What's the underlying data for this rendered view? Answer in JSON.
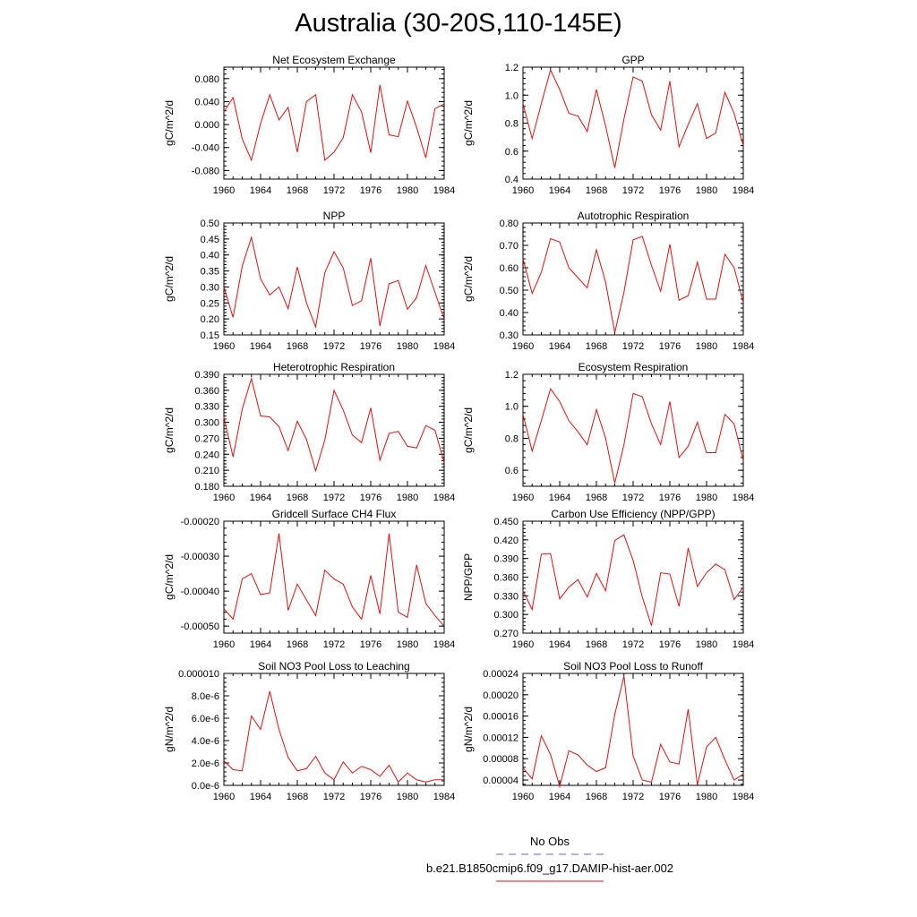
{
  "title": "Australia (30-20S,110-145E)",
  "legend": {
    "obs_label": "No Obs",
    "obs_color": "#6666cc",
    "case_label": "b.e21.B1850cmip6.f09_g17.DAMIP-hist-aer.002",
    "case_color": "#e01010"
  },
  "chart_data": [
    {
      "type": "line",
      "title": "Net Ecosystem Exchange",
      "ylabel": "gC/m^2/d",
      "xlim": [
        1960,
        1984
      ],
      "ylim": [
        -0.095,
        0.1
      ],
      "yticks": [
        -0.08,
        -0.04,
        0.0,
        0.04,
        0.08
      ],
      "ytick_labels": [
        "-0.080",
        "-0.040",
        "0.000",
        "0.040",
        "0.080"
      ],
      "xticks": [
        1960,
        1964,
        1968,
        1972,
        1976,
        1980,
        1984
      ],
      "xtick_labels": [
        "1960",
        "1964",
        "1968",
        "1972",
        "1976",
        "1980",
        "1984"
      ],
      "series": [
        {
          "color": "#e01010",
          "x": [
            1960,
            1961,
            1962,
            1963,
            1964,
            1965,
            1966,
            1967,
            1968,
            1969,
            1970,
            1971,
            1972,
            1973,
            1974,
            1975,
            1976,
            1977,
            1978,
            1979,
            1980,
            1981,
            1982,
            1983,
            1984
          ],
          "y": [
            0.022,
            0.047,
            -0.025,
            -0.062,
            0.002,
            0.052,
            0.008,
            0.03,
            -0.048,
            0.04,
            0.052,
            -0.062,
            -0.048,
            -0.023,
            0.052,
            0.022,
            -0.049,
            0.069,
            -0.018,
            -0.021,
            0.041,
            -0.005,
            -0.058,
            0.028,
            0.036
          ]
        }
      ]
    },
    {
      "type": "line",
      "title": "GPP",
      "ylabel": "gC/m^2/d",
      "xlim": [
        1960,
        1984
      ],
      "ylim": [
        0.4,
        1.2
      ],
      "yticks": [
        0.4,
        0.6,
        0.8,
        1.0,
        1.2
      ],
      "ytick_labels": [
        "0.4",
        "0.6",
        "0.8",
        "1.0",
        "1.2"
      ],
      "xticks": [
        1960,
        1964,
        1968,
        1972,
        1976,
        1980,
        1984
      ],
      "xtick_labels": [
        "1960",
        "1964",
        "1968",
        "1972",
        "1976",
        "1980",
        "1984"
      ],
      "series": [
        {
          "color": "#e01010",
          "x": [
            1960,
            1961,
            1962,
            1963,
            1964,
            1965,
            1966,
            1967,
            1968,
            1969,
            1970,
            1971,
            1972,
            1973,
            1974,
            1975,
            1976,
            1977,
            1978,
            1979,
            1980,
            1981,
            1982,
            1983,
            1984
          ],
          "y": [
            0.94,
            0.69,
            0.94,
            1.18,
            1.04,
            0.87,
            0.85,
            0.74,
            1.04,
            0.78,
            0.48,
            0.83,
            1.13,
            1.1,
            0.86,
            0.75,
            1.1,
            0.63,
            0.79,
            0.94,
            0.69,
            0.73,
            1.02,
            0.87,
            0.64
          ]
        }
      ]
    },
    {
      "type": "line",
      "title": "NPP",
      "ylabel": "gC/m^2/d",
      "xlim": [
        1960,
        1984
      ],
      "ylim": [
        0.15,
        0.5
      ],
      "yticks": [
        0.15,
        0.2,
        0.25,
        0.3,
        0.35,
        0.4,
        0.45,
        0.5
      ],
      "ytick_labels": [
        "0.15",
        "0.20",
        "0.25",
        "0.30",
        "0.35",
        "0.40",
        "0.45",
        "0.50"
      ],
      "xticks": [
        1960,
        1964,
        1968,
        1972,
        1976,
        1980,
        1984
      ],
      "xtick_labels": [
        "1960",
        "1964",
        "1968",
        "1972",
        "1976",
        "1980",
        "1984"
      ],
      "series": [
        {
          "color": "#e01010",
          "x": [
            1960,
            1961,
            1962,
            1963,
            1964,
            1965,
            1966,
            1967,
            1968,
            1969,
            1970,
            1971,
            1972,
            1973,
            1974,
            1975,
            1976,
            1977,
            1978,
            1979,
            1980,
            1981,
            1982,
            1983,
            1984
          ],
          "y": [
            0.3,
            0.205,
            0.365,
            0.455,
            0.325,
            0.275,
            0.3,
            0.232,
            0.362,
            0.25,
            0.175,
            0.345,
            0.41,
            0.36,
            0.242,
            0.257,
            0.39,
            0.178,
            0.31,
            0.32,
            0.23,
            0.267,
            0.367,
            0.283,
            0.2
          ]
        }
      ]
    },
    {
      "type": "line",
      "title": "Autotrophic Respiration",
      "ylabel": "gC/m^2/d",
      "xlim": [
        1960,
        1984
      ],
      "ylim": [
        0.3,
        0.8
      ],
      "yticks": [
        0.3,
        0.4,
        0.5,
        0.6,
        0.7,
        0.8
      ],
      "ytick_labels": [
        "0.30",
        "0.40",
        "0.50",
        "0.60",
        "0.70",
        "0.80"
      ],
      "xticks": [
        1960,
        1964,
        1968,
        1972,
        1976,
        1980,
        1984
      ],
      "xtick_labels": [
        "1960",
        "1964",
        "1968",
        "1972",
        "1976",
        "1980",
        "1984"
      ],
      "series": [
        {
          "color": "#e01010",
          "x": [
            1960,
            1961,
            1962,
            1963,
            1964,
            1965,
            1966,
            1967,
            1968,
            1969,
            1970,
            1971,
            1972,
            1973,
            1974,
            1975,
            1976,
            1977,
            1978,
            1979,
            1980,
            1981,
            1982,
            1983,
            1984
          ],
          "y": [
            0.64,
            0.485,
            0.58,
            0.73,
            0.715,
            0.6,
            0.555,
            0.51,
            0.68,
            0.535,
            0.31,
            0.49,
            0.725,
            0.74,
            0.61,
            0.495,
            0.705,
            0.455,
            0.475,
            0.625,
            0.46,
            0.46,
            0.66,
            0.6,
            0.445
          ]
        }
      ]
    },
    {
      "type": "line",
      "title": "Heterotrophic Respiration",
      "ylabel": "gC/m^2/d",
      "xlim": [
        1960,
        1984
      ],
      "ylim": [
        0.18,
        0.39
      ],
      "yticks": [
        0.18,
        0.21,
        0.24,
        0.27,
        0.3,
        0.33,
        0.36,
        0.39
      ],
      "ytick_labels": [
        "0.180",
        "0.210",
        "0.240",
        "0.270",
        "0.300",
        "0.330",
        "0.360",
        "0.390"
      ],
      "xticks": [
        1960,
        1964,
        1968,
        1972,
        1976,
        1980,
        1984
      ],
      "xtick_labels": [
        "1960",
        "1964",
        "1968",
        "1972",
        "1976",
        "1980",
        "1984"
      ],
      "series": [
        {
          "color": "#e01010",
          "x": [
            1960,
            1961,
            1962,
            1963,
            1964,
            1965,
            1966,
            1967,
            1968,
            1969,
            1970,
            1971,
            1972,
            1973,
            1974,
            1975,
            1976,
            1977,
            1978,
            1979,
            1980,
            1981,
            1982,
            1983,
            1984
          ],
          "y": [
            0.31,
            0.235,
            0.325,
            0.382,
            0.312,
            0.31,
            0.292,
            0.247,
            0.302,
            0.268,
            0.209,
            0.267,
            0.36,
            0.323,
            0.276,
            0.262,
            0.327,
            0.229,
            0.279,
            0.283,
            0.255,
            0.252,
            0.294,
            0.285,
            0.224
          ]
        }
      ]
    },
    {
      "type": "line",
      "title": "Ecosystem Respiration",
      "ylabel": "gC/m^2/d",
      "xlim": [
        1960,
        1984
      ],
      "ylim": [
        0.5,
        1.2
      ],
      "yticks": [
        0.6,
        0.8,
        1.0,
        1.2
      ],
      "ytick_labels": [
        "0.6",
        "0.8",
        "1.0",
        "1.2"
      ],
      "xticks": [
        1960,
        1964,
        1968,
        1972,
        1976,
        1980,
        1984
      ],
      "xtick_labels": [
        "1960",
        "1964",
        "1968",
        "1972",
        "1976",
        "1980",
        "1984"
      ],
      "series": [
        {
          "color": "#e01010",
          "x": [
            1960,
            1961,
            1962,
            1963,
            1964,
            1965,
            1966,
            1967,
            1968,
            1969,
            1970,
            1971,
            1972,
            1973,
            1974,
            1975,
            1976,
            1977,
            1978,
            1979,
            1980,
            1981,
            1982,
            1983,
            1984
          ],
          "y": [
            0.95,
            0.72,
            0.91,
            1.11,
            1.03,
            0.91,
            0.84,
            0.76,
            0.98,
            0.8,
            0.52,
            0.76,
            1.08,
            1.06,
            0.89,
            0.76,
            1.03,
            0.68,
            0.75,
            0.9,
            0.71,
            0.71,
            0.95,
            0.89,
            0.66
          ]
        }
      ]
    },
    {
      "type": "line",
      "title": "Gridcell Surface CH4 Flux",
      "ylabel": "gC/m^2/d",
      "xlim": [
        1960,
        1984
      ],
      "ylim": [
        -0.00052,
        -0.0002
      ],
      "yticks": [
        -0.0005,
        -0.0004,
        -0.0003,
        -0.0002
      ],
      "ytick_labels": [
        "-0.00050",
        "-0.00040",
        "-0.00030",
        "-0.00020"
      ],
      "xticks": [
        1960,
        1964,
        1968,
        1972,
        1976,
        1980,
        1984
      ],
      "xtick_labels": [
        "1960",
        "1964",
        "1968",
        "1972",
        "1976",
        "1980",
        "1984"
      ],
      "series": [
        {
          "color": "#e01010",
          "x": [
            1960,
            1961,
            1962,
            1963,
            1964,
            1965,
            1966,
            1967,
            1968,
            1969,
            1970,
            1971,
            1972,
            1973,
            1974,
            1975,
            1976,
            1977,
            1978,
            1979,
            1980,
            1981,
            1982,
            1983,
            1984
          ],
          "y": [
            -0.00045,
            -0.00048,
            -0.000365,
            -0.00035,
            -0.00041,
            -0.000405,
            -0.000235,
            -0.000455,
            -0.00038,
            -0.000425,
            -0.00047,
            -0.00034,
            -0.000365,
            -0.00038,
            -0.000445,
            -0.00048,
            -0.000355,
            -0.000465,
            -0.000235,
            -0.00046,
            -0.000475,
            -0.000325,
            -0.000435,
            -0.00047,
            -0.0005
          ]
        }
      ]
    },
    {
      "type": "line",
      "title": "Carbon Use Efficiency (NPP/GPP)",
      "ylabel": "NPP/GPP",
      "xlim": [
        1960,
        1984
      ],
      "ylim": [
        0.27,
        0.45
      ],
      "yticks": [
        0.27,
        0.3,
        0.33,
        0.36,
        0.39,
        0.42,
        0.45
      ],
      "ytick_labels": [
        "0.270",
        "0.300",
        "0.330",
        "0.360",
        "0.390",
        "0.420",
        "0.450"
      ],
      "xticks": [
        1960,
        1964,
        1968,
        1972,
        1976,
        1980,
        1984
      ],
      "xtick_labels": [
        "1960",
        "1964",
        "1968",
        "1972",
        "1976",
        "1980",
        "1984"
      ],
      "series": [
        {
          "color": "#e01010",
          "x": [
            1960,
            1961,
            1962,
            1963,
            1964,
            1965,
            1966,
            1967,
            1968,
            1969,
            1970,
            1971,
            1972,
            1973,
            1974,
            1975,
            1976,
            1977,
            1978,
            1979,
            1980,
            1981,
            1982,
            1983,
            1984
          ],
          "y": [
            0.338,
            0.308,
            0.397,
            0.398,
            0.325,
            0.344,
            0.356,
            0.328,
            0.366,
            0.338,
            0.419,
            0.428,
            0.387,
            0.328,
            0.282,
            0.367,
            0.365,
            0.313,
            0.407,
            0.345,
            0.367,
            0.381,
            0.372,
            0.324,
            0.344
          ]
        }
      ]
    },
    {
      "type": "line",
      "title": "Soil NO3 Pool Loss to Leaching",
      "ylabel": "gN/m^2/d",
      "xlim": [
        1960,
        1984
      ],
      "ylim": [
        0,
        1e-05
      ],
      "yticks": [
        0,
        2e-06,
        4e-06,
        6e-06,
        8e-06,
        1e-05
      ],
      "ytick_labels": [
        "0.0e-6",
        "2.0e-6",
        "4.0e-6",
        "6.0e-6",
        "8.0e-6",
        "0.000010"
      ],
      "xticks": [
        1960,
        1964,
        1968,
        1972,
        1976,
        1980,
        1984
      ],
      "xtick_labels": [
        "1960",
        "1964",
        "1968",
        "1972",
        "1976",
        "1980",
        "1984"
      ],
      "series": [
        {
          "color": "#e01010",
          "x": [
            1960,
            1961,
            1962,
            1963,
            1964,
            1965,
            1966,
            1967,
            1968,
            1969,
            1970,
            1971,
            1972,
            1973,
            1974,
            1975,
            1976,
            1977,
            1978,
            1979,
            1980,
            1981,
            1982,
            1983,
            1984
          ],
          "y": [
            2.2e-06,
            1.4e-06,
            1.3e-06,
            6.2e-06,
            5e-06,
            8.4e-06,
            5e-06,
            2.5e-06,
            1.3e-06,
            1.5e-06,
            2.6e-06,
            1.1e-06,
            5e-07,
            2.1e-06,
            1.1e-06,
            1.7e-06,
            1.4e-06,
            8e-07,
            1.8e-06,
            3e-07,
            1.1e-06,
            5e-07,
            3e-07,
            5e-07,
            5e-07
          ]
        }
      ]
    },
    {
      "type": "line",
      "title": "Soil NO3 Pool Loss to Runoff",
      "ylabel": "gN/m^2/d",
      "xlim": [
        1960,
        1984
      ],
      "ylim": [
        3e-05,
        0.00024
      ],
      "yticks": [
        4e-05,
        8e-05,
        0.00012,
        0.00016,
        0.0002,
        0.00024
      ],
      "ytick_labels": [
        "0.00004",
        "0.00008",
        "0.00012",
        "0.00016",
        "0.00020",
        "0.00024"
      ],
      "xticks": [
        1960,
        1964,
        1968,
        1972,
        1976,
        1980,
        1984
      ],
      "xtick_labels": [
        "1960",
        "1964",
        "1968",
        "1972",
        "1976",
        "1980",
        "1984"
      ],
      "series": [
        {
          "color": "#e01010",
          "x": [
            1960,
            1961,
            1962,
            1963,
            1964,
            1965,
            1966,
            1967,
            1968,
            1969,
            1970,
            1971,
            1972,
            1973,
            1974,
            1975,
            1976,
            1977,
            1978,
            1979,
            1980,
            1981,
            1982,
            1983,
            1984
          ],
          "y": [
            6.3e-05,
            4.2e-05,
            0.000123,
            8.8e-05,
            2.8e-05,
            9.5e-05,
            8.7e-05,
            6.8e-05,
            5.6e-05,
            6.3e-05,
            0.000163,
            0.000235,
            8.5e-05,
            4e-05,
            3.6e-05,
            0.000107,
            7.4e-05,
            7e-05,
            0.000173,
            3.1e-05,
            0.000102,
            0.00012,
            7.8e-05,
            4e-05,
            5.1e-05
          ]
        }
      ]
    }
  ]
}
